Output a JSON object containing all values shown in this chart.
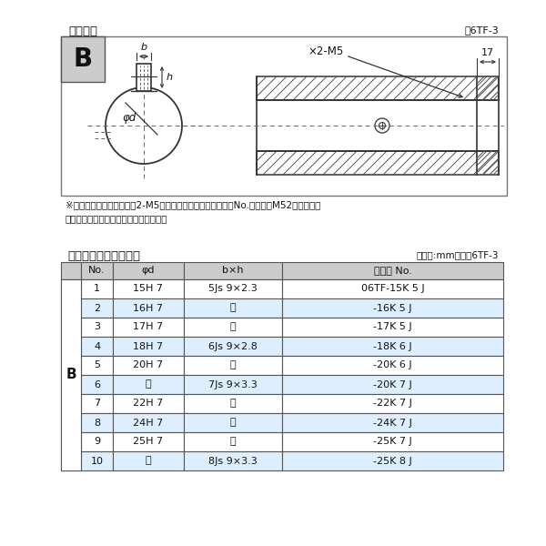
{
  "title_top": "軸穴形状",
  "fig_label_top": "囶6TF-3",
  "title_bottom": "軸穴形状コード一覧表",
  "unit_label": "（単位:mm）　表6TF-3",
  "note1": "※セットボルト用タップ（2-M5）が必要な場合は右記コードNo.の末尾にM52を付ける。",
  "note2": "（セットボルトは付属されています。）",
  "dim_M5": "×2-M5",
  "dim_17": "17",
  "dim_b": "b",
  "dim_h": "h",
  "dim_phid": "φd",
  "col_headers": [
    "No.",
    "φd",
    "b×h",
    "コード No."
  ],
  "rows": [
    [
      "1",
      "15H 7",
      "5Js 9×2.3",
      "06TF-15K 5 J"
    ],
    [
      "2",
      "16H 7",
      "〃",
      "-16K 5 J"
    ],
    [
      "3",
      "17H 7",
      "〃",
      "-17K 5 J"
    ],
    [
      "4",
      "18H 7",
      "6Js 9×2.8",
      "-18K 6 J"
    ],
    [
      "5",
      "20H 7",
      "〃",
      "-20K 6 J"
    ],
    [
      "6",
      "〃",
      "7Js 9×3.3",
      "-20K 7 J"
    ],
    [
      "7",
      "22H 7",
      "〃",
      "-22K 7 J"
    ],
    [
      "8",
      "24H 7",
      "〃",
      "-24K 7 J"
    ],
    [
      "9",
      "25H 7",
      "〃",
      "-25K 7 J"
    ],
    [
      "10",
      "〃",
      "8Js 9×3.3",
      "-25K 8 J"
    ]
  ],
  "bg_color": "#ffffff",
  "row_alt_color": "#ddeeff",
  "header_color": "#cccccc",
  "border_color": "#555555"
}
